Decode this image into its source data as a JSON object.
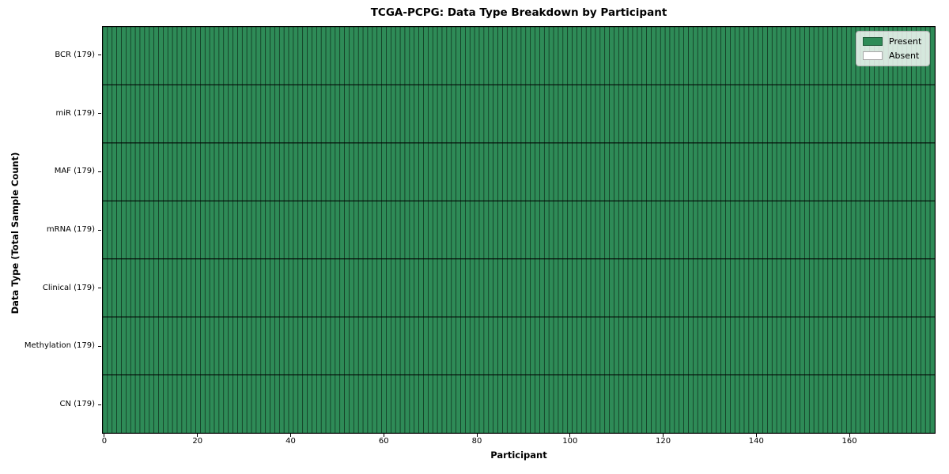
{
  "chart_data": {
    "type": "heatmap",
    "title": "TCGA-PCPG: Data Type Breakdown by Participant",
    "xlabel": "Participant",
    "ylabel": "Data Type (Total Sample Count)",
    "n_participants": 179,
    "xlim": [
      -0.5,
      178.5
    ],
    "x_ticks": [
      0,
      20,
      40,
      60,
      80,
      100,
      120,
      140,
      160
    ],
    "rows": [
      {
        "label": "BCR (179)",
        "data_type": "BCR",
        "total_samples": 179,
        "present_count": 179,
        "absent_count": 0
      },
      {
        "label": "miR (179)",
        "data_type": "miR",
        "total_samples": 179,
        "present_count": 179,
        "absent_count": 0
      },
      {
        "label": "MAF (179)",
        "data_type": "MAF",
        "total_samples": 179,
        "present_count": 179,
        "absent_count": 0
      },
      {
        "label": "mRNA (179)",
        "data_type": "mRNA",
        "total_samples": 179,
        "present_count": 179,
        "absent_count": 0
      },
      {
        "label": "Clinical (179)",
        "data_type": "Clinical",
        "total_samples": 179,
        "present_count": 179,
        "absent_count": 0
      },
      {
        "label": "Methylation (179)",
        "data_type": "Methylation",
        "total_samples": 179,
        "present_count": 179,
        "absent_count": 0
      },
      {
        "label": "CN (179)",
        "data_type": "CN",
        "total_samples": 179,
        "present_count": 179,
        "absent_count": 0
      }
    ],
    "all_cells_present": true,
    "legend": {
      "position": "upper right",
      "entries": [
        {
          "label": "Present",
          "color": "#2e8b57"
        },
        {
          "label": "Absent",
          "color": "#ffffff"
        }
      ]
    },
    "colors": {
      "present": "#2e8b57",
      "absent": "#ffffff",
      "cell_edge": "rgba(0,0,0,0.55)",
      "row_divider": "#000000",
      "background": "#ffffff"
    }
  }
}
